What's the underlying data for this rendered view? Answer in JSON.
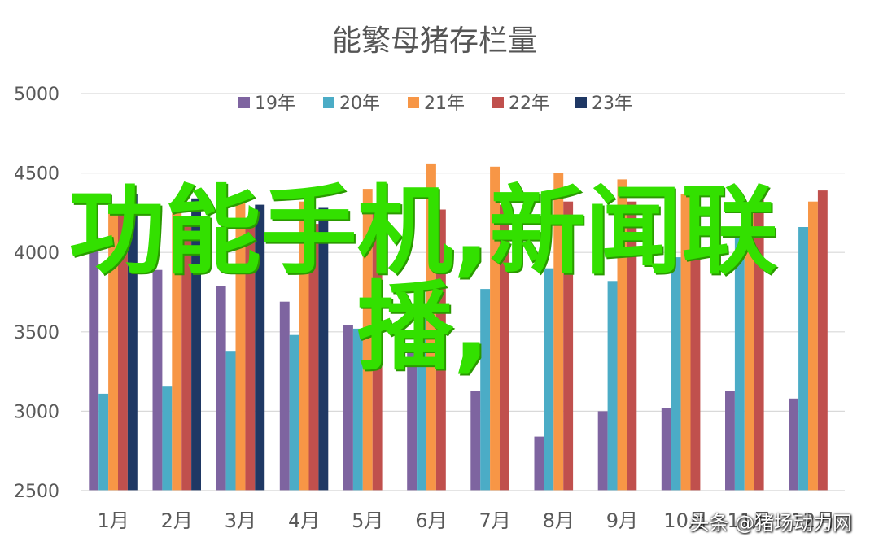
{
  "chart_data": {
    "type": "bar",
    "title": "能繁母猪存栏量",
    "categories": [
      "1月",
      "2月",
      "3月",
      "4月",
      "5月",
      "6月",
      "7月",
      "8月",
      "9月",
      "10月",
      "11月",
      "12月"
    ],
    "series": [
      {
        "name": "19年",
        "color": "#7e64a0",
        "values": [
          4100,
          3890,
          3790,
          3690,
          3540,
          3420,
          3130,
          2840,
          3000,
          3020,
          3130,
          3080
        ]
      },
      {
        "name": "20年",
        "color": "#4bacc6",
        "values": [
          3110,
          3160,
          3380,
          3480,
          3520,
          3600,
          3770,
          3900,
          3820,
          3970,
          4090,
          4160
        ]
      },
      {
        "name": "21年",
        "color": "#f79646",
        "values": [
          4250,
          4250,
          4310,
          4320,
          4400,
          4560,
          4540,
          4500,
          4460,
          4370,
          4290,
          4320
        ]
      },
      {
        "name": "22年",
        "color": "#c0504d",
        "values": [
          4290,
          4230,
          4180,
          4180,
          4300,
          4270,
          4300,
          4320,
          4320,
          4380,
          4370,
          4390
        ]
      },
      {
        "name": "23年",
        "color": "#1f3864",
        "values": [
          4370,
          4340,
          4300,
          4280,
          null,
          null,
          null,
          null,
          null,
          null,
          null,
          null
        ]
      }
    ],
    "ylim": [
      2500,
      5000
    ],
    "yticks": [
      2500,
      3000,
      3500,
      4000,
      4500,
      5000
    ],
    "grid": true,
    "legend": "top"
  },
  "overlay": {
    "line1": "功能手机,新闻联",
    "line2": "播,"
  },
  "watermark": "头条 @猪场动力网"
}
